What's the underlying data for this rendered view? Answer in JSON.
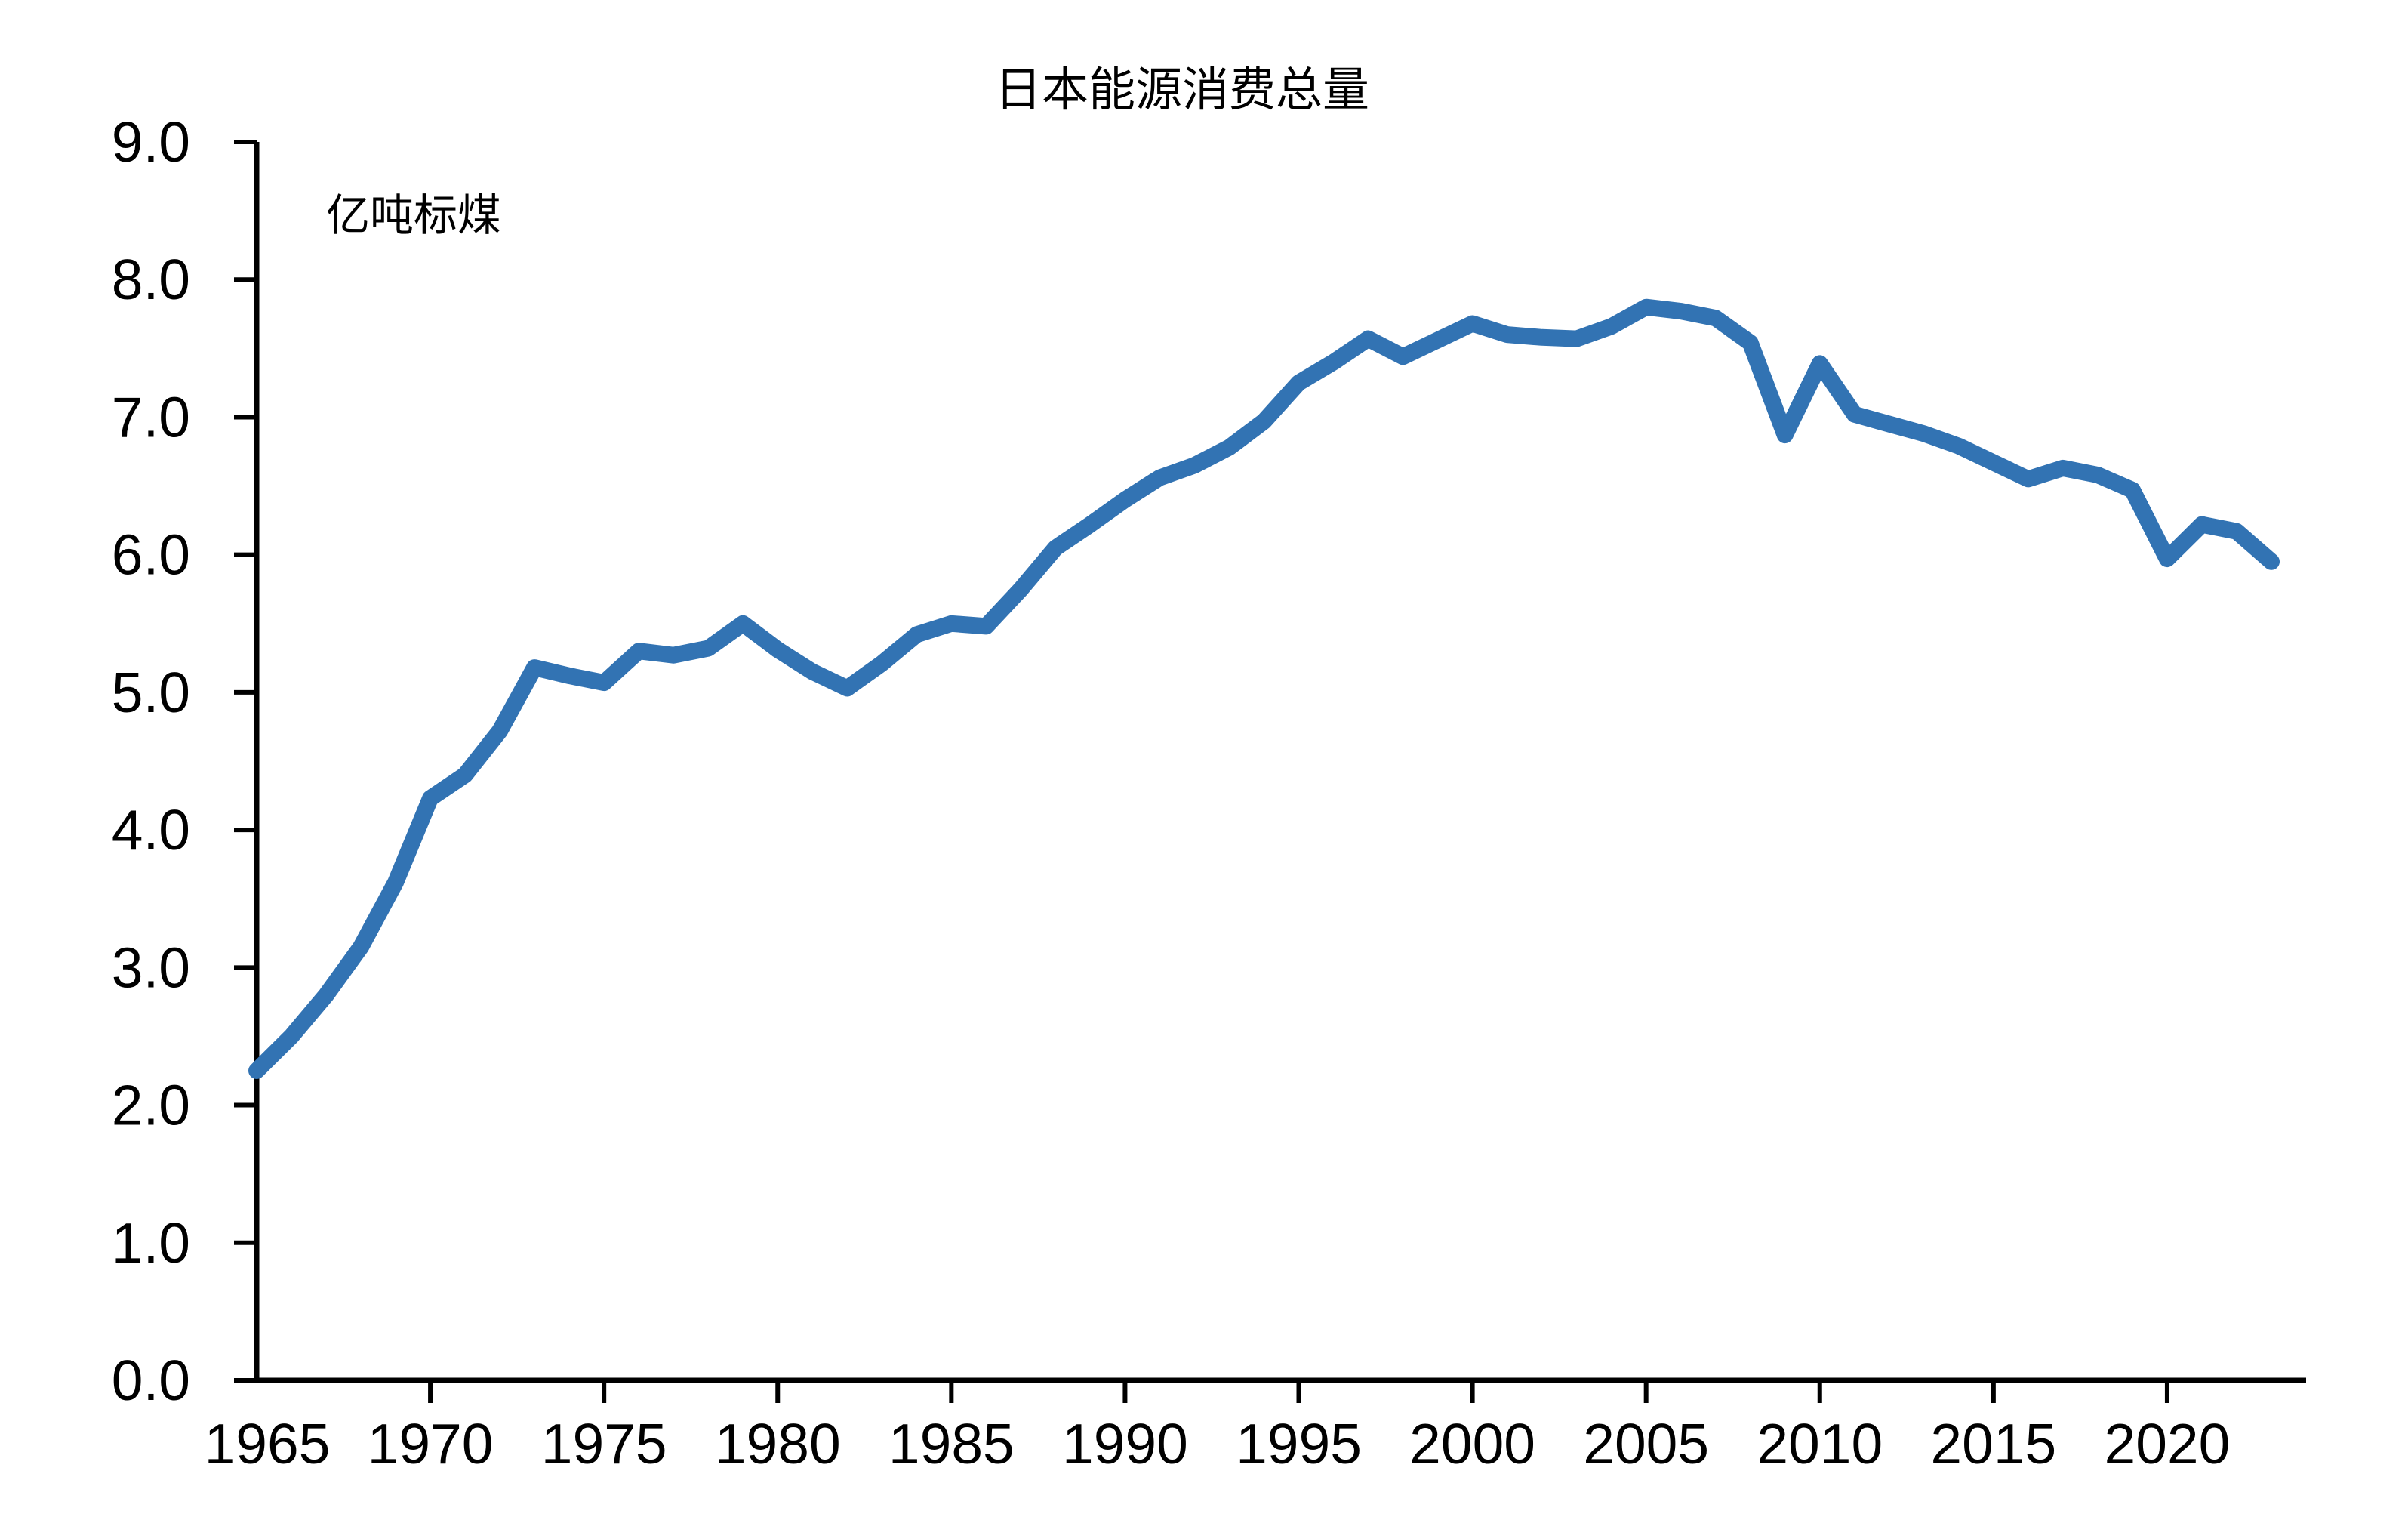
{
  "chart_data": {
    "type": "line",
    "title": "日本能源消费总量",
    "unit_label": "亿吨标煤",
    "xlabel": "",
    "ylabel": "",
    "ylim": [
      0.0,
      9.0
    ],
    "y_tick_labels": [
      "0.0",
      "1.0",
      "2.0",
      "3.0",
      "4.0",
      "5.0",
      "6.0",
      "7.0",
      "8.0",
      "9.0"
    ],
    "x_label_years": [
      1965,
      1970,
      1975,
      1980,
      1985,
      1990,
      1995,
      2000,
      2005,
      2010,
      2015,
      2020
    ],
    "x_tick_mark_years": [
      1970,
      1975,
      1980,
      1985,
      1990,
      1995,
      2000,
      2005,
      2010,
      2015,
      2020
    ],
    "x_axis_start_year": 1965,
    "x_axis_end_year": 2024,
    "grid": "off",
    "legend": "none",
    "line_color": "#3273B3",
    "axis_color": "#000000",
    "x": [
      1965,
      1966,
      1967,
      1968,
      1969,
      1970,
      1971,
      1972,
      1973,
      1974,
      1975,
      1976,
      1977,
      1978,
      1979,
      1980,
      1981,
      1982,
      1983,
      1984,
      1985,
      1986,
      1987,
      1988,
      1989,
      1990,
      1991,
      1992,
      1993,
      1994,
      1995,
      1996,
      1997,
      1998,
      1999,
      2000,
      2001,
      2002,
      2003,
      2004,
      2005,
      2006,
      2007,
      2008,
      2009,
      2010,
      2011,
      2012,
      2013,
      2014,
      2015,
      2016,
      2017,
      2018,
      2019,
      2020,
      2021,
      2022,
      2023
    ],
    "series": [
      {
        "name": "日本能源消费总量",
        "values": [
          2.25,
          2.5,
          2.8,
          3.15,
          3.62,
          4.23,
          4.4,
          4.72,
          5.18,
          5.12,
          5.07,
          5.3,
          5.27,
          5.32,
          5.5,
          5.31,
          5.15,
          5.03,
          5.21,
          5.42,
          5.5,
          5.48,
          5.75,
          6.05,
          6.22,
          6.4,
          6.56,
          6.65,
          6.78,
          6.97,
          7.25,
          7.4,
          7.57,
          7.44,
          7.56,
          7.68,
          7.6,
          7.58,
          7.57,
          7.66,
          7.8,
          7.77,
          7.72,
          7.54,
          6.87,
          7.39,
          7.02,
          6.95,
          6.88,
          6.79,
          6.67,
          6.55,
          6.63,
          6.58,
          6.47,
          5.97,
          6.22,
          6.17,
          5.95
        ]
      }
    ]
  }
}
